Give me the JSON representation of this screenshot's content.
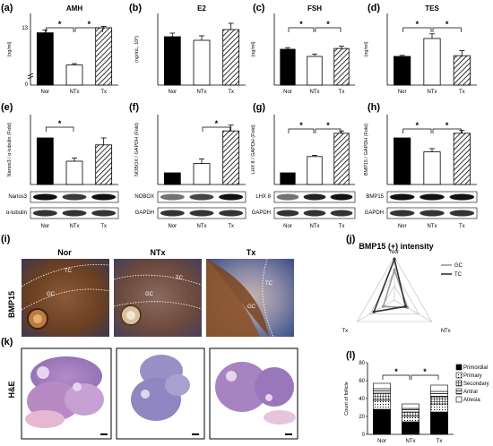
{
  "panel_labels": {
    "a": "(a)",
    "b": "(b)",
    "c": "(c)",
    "d": "(d)",
    "e": "(e)",
    "f": "(f)",
    "g": "(g)",
    "h": "(h)",
    "i": "(i)",
    "j": "(j)",
    "k": "(k)",
    "l": "(l)"
  },
  "groups": [
    "Nor",
    "NTx",
    "Tx"
  ],
  "star": "*",
  "colors": {
    "nor": "#000000",
    "ntx": "#ffffff",
    "tx_hatch": "#000000",
    "gc": "#999999",
    "tc": "#333333"
  },
  "chart_data": [
    {
      "id": "a",
      "type": "bar",
      "title": "AMH",
      "ylabel": "(ng/ml)",
      "categories": [
        "Nor",
        "NTx",
        "Tx"
      ],
      "values": [
        12.3,
        7.8,
        13.0
      ],
      "errors": [
        0.4,
        0.2,
        0.2
      ],
      "yticks": [
        "13",
        "0"
      ],
      "axis_break": true,
      "sig": [
        [
          "Nor",
          "NTx"
        ],
        [
          "NTx",
          "Tx"
        ]
      ]
    },
    {
      "id": "b",
      "type": "bar",
      "title": "E2",
      "ylabel": "(ng/mL, 10³)",
      "categories": [
        "Nor",
        "NTx",
        "Tx"
      ],
      "values": [
        2.7,
        2.5,
        3.1
      ],
      "errors": [
        0.2,
        0.25,
        0.35
      ],
      "ylim": [
        0,
        4
      ],
      "sig": []
    },
    {
      "id": "c",
      "type": "bar",
      "title": "FSH",
      "ylabel": "(ng/ml)",
      "categories": [
        "Nor",
        "NTx",
        "Tx"
      ],
      "values": [
        0.45,
        0.36,
        0.46
      ],
      "errors": [
        0.02,
        0.03,
        0.03
      ],
      "ylim": [
        0,
        0.9
      ],
      "sig": [
        [
          "Nor",
          "NTx"
        ],
        [
          "NTx",
          "Tx"
        ]
      ]
    },
    {
      "id": "d",
      "type": "bar",
      "title": "TES",
      "ylabel": "(ng/ml)",
      "categories": [
        "Nor",
        "NTx",
        "Tx"
      ],
      "values": [
        8.0,
        13.0,
        8.2
      ],
      "errors": [
        0.3,
        1.3,
        1.4
      ],
      "ylim": [
        0,
        20
      ],
      "sig": [
        [
          "Nor",
          "NTx"
        ],
        [
          "NTx",
          "Tx"
        ]
      ]
    },
    {
      "id": "e",
      "type": "bar",
      "title": "",
      "ylabel": "Nanos3 / α-tubulin (Fold)",
      "categories": [
        "Nor",
        "NTx",
        "Tx"
      ],
      "values": [
        1.0,
        0.5,
        0.85
      ],
      "errors": [
        0,
        0.07,
        0.15
      ],
      "ylim": [
        0,
        1.5
      ],
      "sig": [
        [
          "Nor",
          "NTx"
        ]
      ],
      "blots": [
        "Nanos3",
        "α-tubulin"
      ]
    },
    {
      "id": "f",
      "type": "bar",
      "title": "",
      "ylabel": "NOBOX / GAPDH (Fold)",
      "categories": [
        "Nor",
        "NTx",
        "Tx"
      ],
      "values": [
        1.0,
        1.8,
        4.6
      ],
      "errors": [
        0,
        0.4,
        0.5
      ],
      "ylim": [
        0,
        6
      ],
      "sig": [
        [
          "NTx",
          "Tx"
        ]
      ],
      "blots": [
        "NOBOX",
        "GAPDH"
      ]
    },
    {
      "id": "g",
      "type": "bar",
      "title": "",
      "ylabel": "LHX 8 / GAPDH (Fold)",
      "categories": [
        "Nor",
        "NTx",
        "Tx"
      ],
      "values": [
        1.0,
        2.4,
        4.4
      ],
      "errors": [
        0,
        0.1,
        0.2
      ],
      "ylim": [
        0,
        6
      ],
      "sig": [
        [
          "Nor",
          "NTx"
        ],
        [
          "NTx",
          "Tx"
        ]
      ],
      "blots": [
        "LHX 8",
        "GAPDH"
      ]
    },
    {
      "id": "h",
      "type": "bar",
      "title": "",
      "ylabel": "BMP15 / GAPDH (Fold)",
      "categories": [
        "Nor",
        "NTx",
        "Tx"
      ],
      "values": [
        1.0,
        0.7,
        1.1
      ],
      "errors": [
        0,
        0.07,
        0.06
      ],
      "ylim": [
        0,
        1.5
      ],
      "sig": [
        [
          "Nor",
          "NTx"
        ],
        [
          "NTx",
          "Tx"
        ]
      ],
      "blots": [
        "BMP15",
        "GAPDH"
      ]
    },
    {
      "id": "j",
      "type": "radar",
      "title": "BMP15 (+) intensity",
      "axes": [
        "Nor",
        "NTx",
        "Tx"
      ],
      "series": [
        {
          "name": "GC",
          "values": [
            0.7,
            0.35,
            0.3
          ]
        },
        {
          "name": "TC",
          "values": [
            0.95,
            0.3,
            0.55
          ]
        }
      ]
    },
    {
      "id": "l",
      "type": "bar",
      "stacked": true,
      "ylabel": "Count of follicle",
      "categories": [
        "Nor",
        "NTx",
        "Tx"
      ],
      "ylim": [
        0,
        80
      ],
      "yticks": [
        0,
        20,
        40,
        60,
        80
      ],
      "series": [
        {
          "name": "Primordial",
          "values": [
            28,
            14,
            25
          ]
        },
        {
          "name": "Primary",
          "values": [
            10,
            6,
            9
          ]
        },
        {
          "name": "Secondary",
          "values": [
            8,
            5,
            8
          ]
        },
        {
          "name": "Antral",
          "values": [
            5,
            4,
            6
          ]
        },
        {
          "name": "Atresia",
          "values": [
            6,
            5,
            7
          ]
        }
      ],
      "sig": [
        [
          "Nor",
          "NTx"
        ],
        [
          "NTx",
          "Tx"
        ]
      ]
    }
  ],
  "histo": {
    "stain_ihc": "BMP15",
    "stain_he": "H&E",
    "tc": "TC",
    "gc": "GC"
  }
}
